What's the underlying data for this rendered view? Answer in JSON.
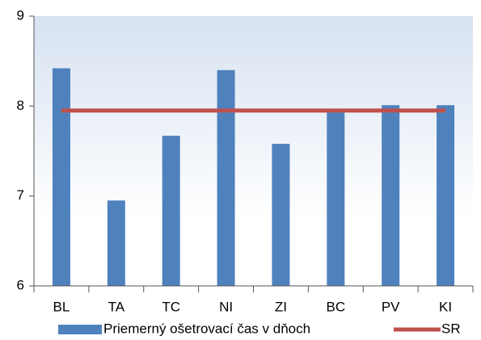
{
  "chart_data": {
    "type": "bar",
    "categories": [
      "BL",
      "TA",
      "TC",
      "NI",
      "ZI",
      "BC",
      "PV",
      "KI"
    ],
    "series": [
      {
        "name": "Priemerný ošetrovací čas v dňoch",
        "type": "bar",
        "color": "#4f81bd",
        "values": [
          8.42,
          6.95,
          7.67,
          8.4,
          7.58,
          7.95,
          8.01,
          8.01
        ]
      },
      {
        "name": "SR",
        "type": "line",
        "color": "#c0504d",
        "values": [
          7.95,
          7.95,
          7.95,
          7.95,
          7.95,
          7.95,
          7.95,
          7.95
        ]
      }
    ],
    "ylim": [
      6,
      9
    ],
    "yticks": [
      6,
      7,
      8,
      9
    ],
    "grid": false,
    "legend": "bottom"
  }
}
